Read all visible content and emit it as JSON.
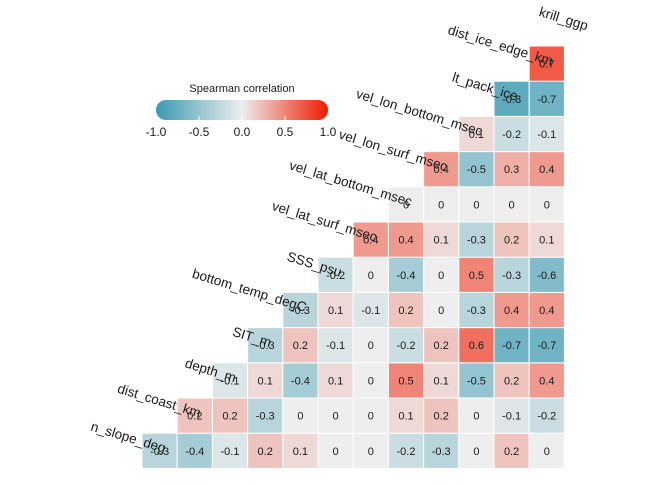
{
  "chart_data": {
    "type": "heatmap",
    "variables": [
      "n_slope_deg",
      "dist_coast_km",
      "depth_m",
      "SIT_m",
      "bottom_temp_degC",
      "SSS_psu",
      "vel_lat_surf_msec",
      "vel_lat_bottom_msec",
      "vel_lon_surf_msec",
      "vel_lon_bottom_msec",
      "lt_pack_ice",
      "dist_ice_edge_km",
      "krill_ggp"
    ],
    "rows": [
      [
        -0.3,
        -0.4,
        -0.1,
        0.2,
        0.1,
        0,
        0,
        -0.2,
        -0.3,
        0,
        0.2,
        0
      ],
      [
        0.2,
        0.2,
        -0.3,
        0,
        0,
        0,
        0.1,
        0.2,
        0,
        -0.1,
        -0.2
      ],
      [
        -0.1,
        0.1,
        -0.4,
        0.1,
        0,
        0.5,
        0.1,
        -0.5,
        0.2,
        0.4
      ],
      [
        -0.3,
        0.2,
        -0.1,
        0,
        -0.2,
        0.2,
        0.6,
        -0.7,
        -0.7
      ],
      [
        -0.3,
        0.1,
        -0.1,
        0.2,
        0,
        -0.3,
        0.4,
        0.4
      ],
      [
        -0.2,
        0,
        -0.4,
        0,
        0.5,
        -0.3,
        -0.6
      ],
      [
        0.4,
        0.4,
        0.1,
        -0.3,
        0.2,
        0.1
      ],
      [
        0,
        0,
        0,
        0,
        0
      ],
      [
        0.4,
        -0.5,
        0.3,
        0.4
      ],
      [
        0.1,
        -0.2,
        -0.1
      ],
      [
        -0.8,
        -0.7
      ],
      [
        0.7
      ]
    ],
    "legend": {
      "title": "Spearman correlation",
      "ticks": [
        "-1.0",
        "-0.5",
        "0.0",
        "0.5",
        "1.0"
      ],
      "range": [
        -1,
        1
      ]
    },
    "colors": {
      "low": "#3A9AB2",
      "mid": "#EEEEEE",
      "high": "#F21A00"
    }
  }
}
